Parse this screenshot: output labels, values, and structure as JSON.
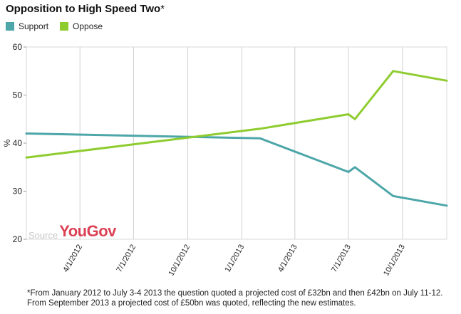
{
  "title": "Opposition to High Speed Two",
  "title_mark": "*",
  "legend": [
    {
      "label": "Support",
      "color": "#4da6a8"
    },
    {
      "label": "Oppose",
      "color": "#8fcc2f"
    }
  ],
  "source_label": "Source",
  "source_brand": "YouGov",
  "footnote": "*From January 2012 to July 3-4 2013 the question quoted a projected cost of £32bn and then £42bn on July 11-12. From September 2013 a projected cost of £50bn was quoted, reflecting the new estimates.",
  "chart_data": {
    "type": "line",
    "title": "Opposition to High Speed Two",
    "ylabel": "%",
    "xlabel": "",
    "ylim": [
      20,
      60
    ],
    "yticks": [
      20,
      30,
      40,
      50,
      60
    ],
    "xlim": [
      "2012-01-01",
      "2013-12-15"
    ],
    "xticks": [
      "4/1/2012",
      "7/1/2012",
      "10/1/2012",
      "1/1/2013",
      "4/1/2013",
      "7/1/2013",
      "10/1/2013"
    ],
    "grid": "vertical",
    "legend_position": "top-left",
    "series": [
      {
        "name": "Support",
        "color": "#4da6a8",
        "points": [
          [
            "2012-01-01",
            42
          ],
          [
            "2013-02-01",
            41
          ],
          [
            "2013-07-01",
            34
          ],
          [
            "2013-07-12",
            35
          ],
          [
            "2013-09-15",
            29
          ],
          [
            "2013-12-15",
            27
          ]
        ]
      },
      {
        "name": "Oppose",
        "color": "#8fcc2f",
        "points": [
          [
            "2012-01-01",
            37
          ],
          [
            "2013-02-01",
            43
          ],
          [
            "2013-07-01",
            46
          ],
          [
            "2013-07-12",
            45
          ],
          [
            "2013-09-15",
            55
          ],
          [
            "2013-12-15",
            53
          ]
        ]
      }
    ]
  }
}
